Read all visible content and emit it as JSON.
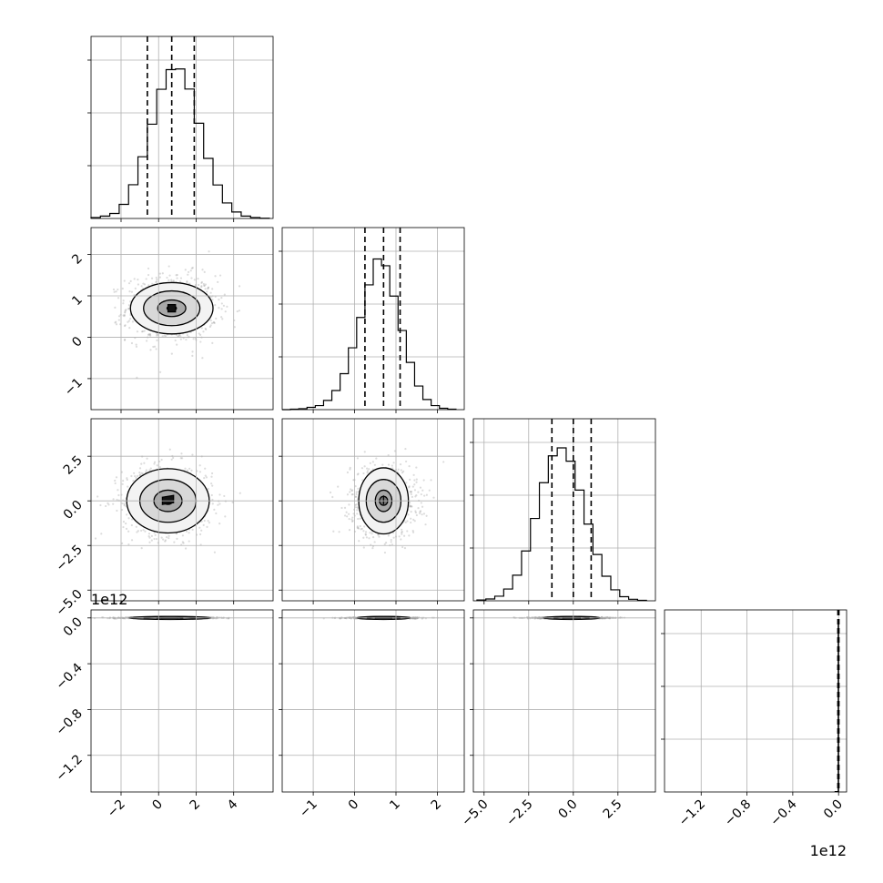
{
  "chart_data": {
    "type": "corner",
    "grid": true,
    "axis_offset_text": {
      "y_row4": "1e12",
      "x_col4": "1e12"
    },
    "axes": {
      "x1": {
        "range": [
          -3.6,
          6.1
        ],
        "ticks": [
          -2,
          0,
          2,
          4
        ],
        "tick_labels": [
          "−2",
          "0",
          "2",
          "4"
        ]
      },
      "x2": {
        "range": [
          -1.75,
          2.65
        ],
        "ticks": [
          -1,
          0,
          1,
          2
        ],
        "tick_labels": [
          "−1",
          "0",
          "1",
          "2"
        ]
      },
      "x3": {
        "range": [
          -5.6,
          4.6
        ],
        "ticks": [
          -5.0,
          -2.5,
          0.0,
          2.5
        ],
        "tick_labels": [
          "−5.0",
          "−2.5",
          "0.0",
          "2.5"
        ]
      },
      "x4": {
        "range": [
          -1.52,
          0.07
        ],
        "ticks": [
          -1.2,
          -0.8,
          -0.4,
          0.0
        ],
        "tick_labels": [
          "−1.2",
          "−0.8",
          "−0.4",
          "0.0"
        ]
      },
      "y2": {
        "range": [
          -1.75,
          2.65
        ],
        "ticks": [
          -1,
          0,
          1,
          2
        ],
        "tick_labels": [
          "−1",
          "0",
          "1",
          "2"
        ]
      },
      "y3": {
        "range": [
          -5.6,
          4.6
        ],
        "ticks": [
          -5.0,
          -2.5,
          0.0,
          2.5
        ],
        "tick_labels": [
          "−5.0",
          "−2.5",
          "0.0",
          "2.5"
        ]
      },
      "y4": {
        "range": [
          -1.52,
          0.07
        ],
        "ticks": [
          -1.2,
          -0.8,
          -0.4,
          0.0
        ],
        "tick_labels": [
          "−1.2",
          "−0.8",
          "−0.4",
          "0.0"
        ]
      }
    },
    "marginals": [
      {
        "parameter": 1,
        "bin_edges": [
          -3.6,
          -3.1,
          -2.6,
          -2.1,
          -1.6,
          -1.1,
          -0.6,
          -0.1,
          0.4,
          0.9,
          1.4,
          1.9,
          2.4,
          2.9,
          3.4,
          3.9,
          4.4,
          4.9,
          5.4,
          5.9
        ],
        "counts": [
          4,
          10,
          21,
          59,
          141,
          258,
          394,
          540,
          622,
          625,
          541,
          398,
          251,
          140,
          65,
          27,
          10,
          4,
          1
        ],
        "ymax": 700,
        "quantiles": [
          -0.6,
          0.7,
          1.9
        ]
      },
      {
        "parameter": 2,
        "bin_edges": [
          -1.75,
          -1.55,
          -1.35,
          -1.15,
          -0.95,
          -0.75,
          -0.55,
          -0.35,
          -0.15,
          0.05,
          0.25,
          0.45,
          0.65,
          0.85,
          1.05,
          1.25,
          1.45,
          1.65,
          1.85,
          2.05,
          2.25,
          2.45
        ],
        "counts": [
          0,
          2,
          4,
          10,
          18,
          41,
          85,
          160,
          275,
          410,
          555,
          670,
          640,
          505,
          352,
          210,
          105,
          45,
          18,
          6,
          2
        ],
        "ymax": 745,
        "quantiles": [
          0.25,
          0.7,
          1.1
        ]
      },
      {
        "parameter": 3,
        "bin_edges": [
          -5.4,
          -4.9,
          -4.4,
          -3.9,
          -3.4,
          -2.9,
          -2.4,
          -1.9,
          -1.4,
          -0.9,
          -0.4,
          0.1,
          0.6,
          1.1,
          1.6,
          2.1,
          2.6,
          3.1,
          3.6,
          4.1
        ],
        "counts": [
          3,
          7,
          18,
          46,
          100,
          195,
          322,
          462,
          567,
          598,
          546,
          433,
          300,
          181,
          96,
          43,
          16,
          6,
          2
        ],
        "ymax": 655,
        "quantiles": [
          -1.2,
          0.0,
          1.0
        ]
      },
      {
        "parameter": 4,
        "bin_edges": [
          -0.03,
          -0.003,
          0.0
        ],
        "counts": [
          10,
          4000
        ],
        "ymax": 4000,
        "quantiles": [
          -0.006,
          -0.001,
          0.003
        ]
      }
    ],
    "joint_panels": [
      {
        "row": 2,
        "col": 1,
        "center": [
          0.7,
          0.7
        ],
        "sigma": [
          1.2,
          0.4
        ],
        "contours": [
          [
            0.25,
            0.06
          ],
          [
            0.75,
            0.2
          ],
          [
            1.5,
            0.42
          ],
          [
            2.2,
            0.62
          ]
        ],
        "peak_offsets": [
          [
            -0.2,
            0.0
          ],
          [
            0.2,
            0.0
          ]
        ]
      },
      {
        "row": 3,
        "col": 1,
        "center": [
          0.5,
          0.0
        ],
        "sigma": [
          1.2,
          1.0
        ],
        "contours": [
          [
            0.25,
            0.2
          ],
          [
            0.75,
            0.6
          ],
          [
            1.5,
            1.2
          ],
          [
            2.2,
            1.8
          ]
        ],
        "peak_offsets": [
          [
            -0.3,
            0.0
          ],
          [
            0.3,
            0.1
          ]
        ]
      },
      {
        "row": 3,
        "col": 2,
        "center": [
          0.7,
          0.0
        ],
        "sigma": [
          0.4,
          1.0
        ],
        "contours": [
          [
            0.1,
            0.25
          ],
          [
            0.2,
            0.6
          ],
          [
            0.42,
            1.2
          ],
          [
            0.6,
            1.85
          ]
        ],
        "peak_offsets": [
          [
            0.0,
            0.0
          ],
          [
            0.0,
            0.1
          ]
        ]
      },
      {
        "row": 4,
        "col": 1,
        "center": [
          0.6,
          0.0
        ],
        "sigma": [
          1.2,
          0.002
        ],
        "contours": [
          [
            0.7,
            0.003
          ],
          [
            1.4,
            0.008
          ],
          [
            2.2,
            0.013
          ]
        ],
        "peak_offsets": [
          [
            -0.3,
            0.0
          ],
          [
            0.3,
            0.0
          ]
        ]
      },
      {
        "row": 4,
        "col": 2,
        "center": [
          0.7,
          0.0
        ],
        "sigma": [
          0.4,
          0.002
        ],
        "contours": [
          [
            0.2,
            0.003
          ],
          [
            0.4,
            0.008
          ],
          [
            0.65,
            0.013
          ]
        ],
        "peak_offsets": [
          [
            0.0,
            0.0
          ],
          [
            0.0,
            0.0
          ]
        ]
      },
      {
        "row": 4,
        "col": 3,
        "center": [
          -0.1,
          0.0
        ],
        "sigma": [
          1.0,
          0.002
        ],
        "contours": [
          [
            0.5,
            0.003
          ],
          [
            1.0,
            0.008
          ],
          [
            1.6,
            0.013
          ]
        ],
        "peak_offsets": [
          [
            0.0,
            0.0
          ],
          [
            0.0,
            0.0
          ]
        ]
      }
    ]
  }
}
